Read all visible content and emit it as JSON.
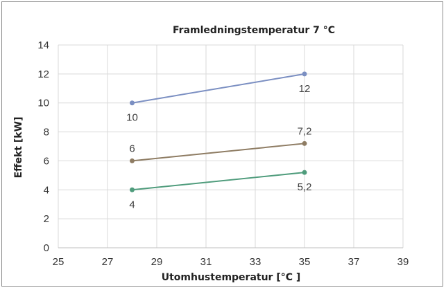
{
  "chart_data": {
    "type": "line",
    "title": "Framledningstemperatur 7 °C",
    "xlabel": "Utomhustemperatur [°C ]",
    "ylabel": "Effekt [kW]",
    "xlim": [
      25,
      39
    ],
    "ylim": [
      0,
      14
    ],
    "x_ticks": [
      25,
      27,
      29,
      31,
      33,
      35,
      37,
      39
    ],
    "y_ticks": [
      0,
      2,
      4,
      6,
      8,
      10,
      12,
      14
    ],
    "grid": true,
    "legend": "none",
    "series": [
      {
        "color": "#7b8fc2",
        "points": [
          {
            "x": 28,
            "y": 10,
            "label": "10",
            "label_pos": "below"
          },
          {
            "x": 35,
            "y": 12,
            "label": "12",
            "label_pos": "below"
          }
        ]
      },
      {
        "color": "#8e7c63",
        "points": [
          {
            "x": 28,
            "y": 6,
            "label": "6",
            "label_pos": "above"
          },
          {
            "x": 35,
            "y": 7.2,
            "label": "7,2",
            "label_pos": "above"
          }
        ]
      },
      {
        "color": "#4f9c7c",
        "points": [
          {
            "x": 28,
            "y": 4,
            "label": "4",
            "label_pos": "below"
          },
          {
            "x": 35,
            "y": 5.2,
            "label": "5,2",
            "label_pos": "below"
          }
        ]
      }
    ]
  }
}
